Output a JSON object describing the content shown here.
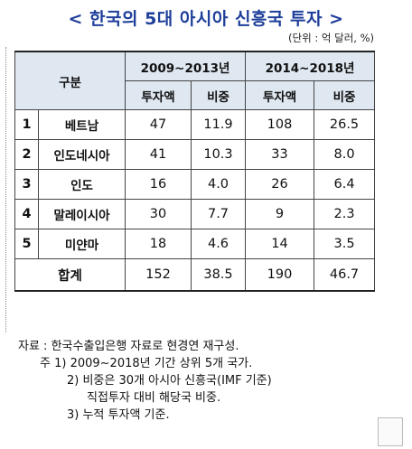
{
  "title": "< 한국의 5대 아시아 신흥국 투자 >",
  "unit": "(단위 : 억 달러, %)",
  "table": {
    "header": {
      "category": "구분",
      "period1": "2009~2013년",
      "period2": "2014~2018년",
      "investment": "투자액",
      "share": "비중"
    },
    "rows": [
      {
        "rank": "1",
        "name": "베트남",
        "inv1": "47",
        "share1": "11.9",
        "inv2": "108",
        "share2": "26.5"
      },
      {
        "rank": "2",
        "name": "인도네시아",
        "inv1": "41",
        "share1": "10.3",
        "inv2": "33",
        "share2": "8.0"
      },
      {
        "rank": "3",
        "name": "인도",
        "inv1": "16",
        "share1": "4.0",
        "inv2": "26",
        "share2": "6.4"
      },
      {
        "rank": "4",
        "name": "말레이시아",
        "inv1": "30",
        "share1": "7.7",
        "inv2": "9",
        "share2": "2.3"
      },
      {
        "rank": "5",
        "name": "미얀마",
        "inv1": "18",
        "share1": "4.6",
        "inv2": "14",
        "share2": "3.5"
      }
    ],
    "total": {
      "label": "합계",
      "inv1": "152",
      "share1": "38.5",
      "inv2": "190",
      "share2": "46.7"
    }
  },
  "notes": {
    "source": "자료 : 한국수출입은행 자료로 현경연 재구성.",
    "note1": "주 1) 2009~2018년 기간 상위 5개 국가.",
    "note2a": "2) 비중은 30개 아시아 신흥국(IMF 기준)",
    "note2b": "직접투자 대비 해당국 비중.",
    "note3": "3) 누적 투자액 기준."
  }
}
